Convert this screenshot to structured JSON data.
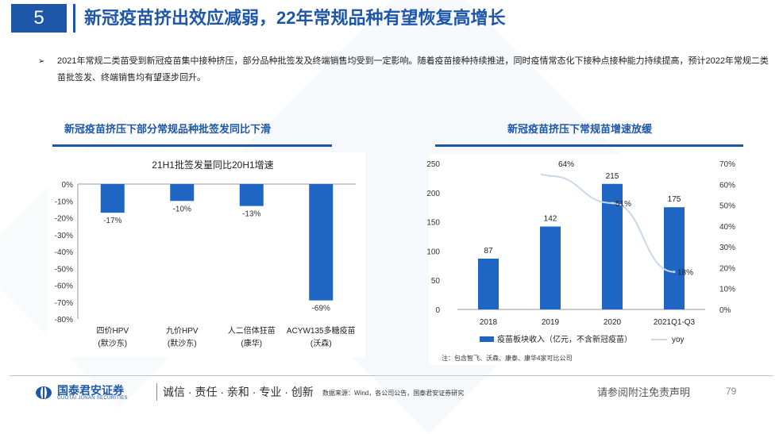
{
  "header": {
    "section_number": "5",
    "title": "新冠疫苗挤出效应减弱，22年常规品种有望恢复高增长"
  },
  "bullet": {
    "marker": "➢",
    "text": "2021年常规二类苗受到新冠疫苗集中接种挤压，部分品种批签发及终端销售均受到一定影响。随着疫苗接种持续推进，同时疫情常态化下接种点接种能力持续提高，预计2022年常规二类苗批签发、终端销售均有望逐步回升。"
  },
  "left_panel": {
    "title": "新冠疫苗挤压下部分常规品种批签发同比下滑"
  },
  "right_panel": {
    "title": "新冠疫苗挤压下常规苗增速放缓"
  },
  "colors": {
    "brand_blue": "#1f57a8",
    "bar_blue": "#1f66c4",
    "yoy_line": "#c9d8ea"
  },
  "chart_data": [
    {
      "type": "bar",
      "title": "21H1批签发量同比20H1增速",
      "categories": [
        {
          "line1": "四价HPV",
          "line2": "(默沙东)"
        },
        {
          "line1": "九价HPV",
          "line2": "(默沙东)"
        },
        {
          "line1": "人二倍体狂苗",
          "line2": "(康华)"
        },
        {
          "line1": "ACYW135多糖疫苗",
          "line2": "(沃森)"
        }
      ],
      "values": [
        -17,
        -10,
        -13,
        -69
      ],
      "value_labels": [
        "-17%",
        "-10%",
        "-13%",
        "-69%"
      ],
      "ylim": [
        -80,
        0
      ],
      "yticks": [
        "0%",
        "-10%",
        "-20%",
        "-30%",
        "-40%",
        "-50%",
        "-60%",
        "-70%",
        "-80%"
      ],
      "grid": false
    },
    {
      "type": "bar+line",
      "categories": [
        "2018",
        "2019",
        "2020",
        "2021Q1-Q3"
      ],
      "series": [
        {
          "name": "疫苗板块收入（亿元，不含新冠疫苗）",
          "type": "bar",
          "values": [
            87,
            142,
            215,
            175
          ],
          "labels": [
            "87",
            "142",
            "215",
            "175"
          ]
        },
        {
          "name": "yoy",
          "type": "line",
          "axis": "right",
          "values": [
            null,
            64,
            51,
            18
          ],
          "labels": [
            "",
            "64%",
            "51%",
            "18%"
          ]
        }
      ],
      "ylim_left": [
        0,
        250
      ],
      "yticks_left": [
        "0",
        "50",
        "100",
        "150",
        "200",
        "250"
      ],
      "ylim_right": [
        0,
        70
      ],
      "yticks_right": [
        "0%",
        "10%",
        "20%",
        "30%",
        "40%",
        "50%",
        "60%",
        "70%"
      ],
      "legend_position": "bottom",
      "note": "注：包含智飞、沃森、康泰、康华4家可比公司"
    }
  ],
  "footer": {
    "logo_cn": "国泰君安证券",
    "logo_en": "GUOTAI JUNAN SECURITIES",
    "slogan": "诚信 · 责任 · 亲和 · 专业 · 创新",
    "source": "数据来源：Wind，各公司公告，国泰君安证券研究",
    "disclaimer": "请参阅附注免责声明",
    "page_number": "79"
  }
}
